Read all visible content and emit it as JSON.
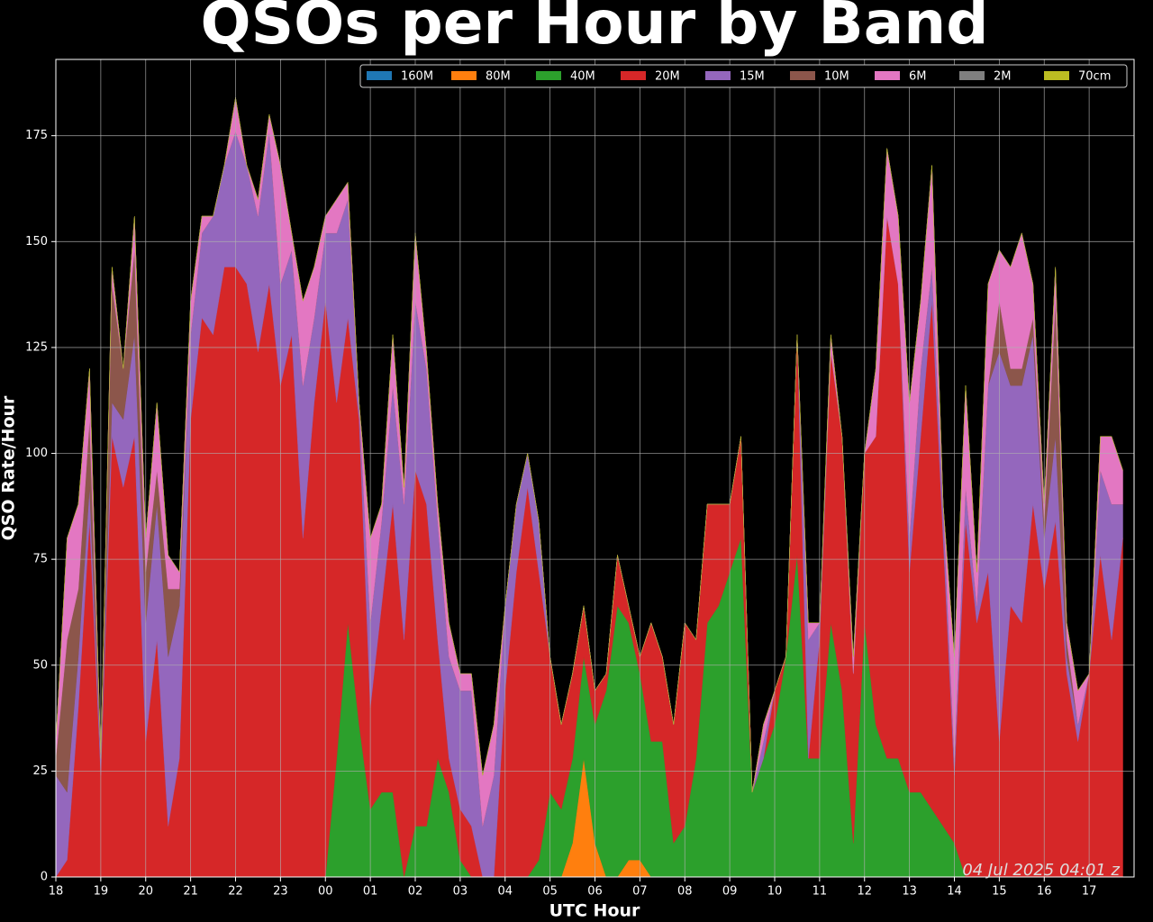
{
  "chart_data": {
    "type": "stackedarea",
    "title": "QSOs per Hour by Band",
    "x_label": "UTC Hour",
    "y_label": "QSO Rate/Hour",
    "annotation": "04 Jul 2025 04:01 z",
    "grid": true,
    "legend": "upper right",
    "xlim": [
      0,
      24
    ],
    "ylim": [
      0,
      193
    ],
    "xticks": [
      {
        "value": 0,
        "label": "18"
      },
      {
        "value": 1,
        "label": "19"
      },
      {
        "value": 2,
        "label": "20"
      },
      {
        "value": 3,
        "label": "21"
      },
      {
        "value": 4,
        "label": "22"
      },
      {
        "value": 5,
        "label": "23"
      },
      {
        "value": 6,
        "label": "00"
      },
      {
        "value": 7,
        "label": "01"
      },
      {
        "value": 8,
        "label": "02"
      },
      {
        "value": 9,
        "label": "03"
      },
      {
        "value": 10,
        "label": "04"
      },
      {
        "value": 11,
        "label": "05"
      },
      {
        "value": 12,
        "label": "06"
      },
      {
        "value": 13,
        "label": "07"
      },
      {
        "value": 14,
        "label": "08"
      },
      {
        "value": 15,
        "label": "09"
      },
      {
        "value": 16,
        "label": "10"
      },
      {
        "value": 17,
        "label": "11"
      },
      {
        "value": 18,
        "label": "12"
      },
      {
        "value": 19,
        "label": "13"
      },
      {
        "value": 20,
        "label": "14"
      },
      {
        "value": 21,
        "label": "15"
      },
      {
        "value": 22,
        "label": "16"
      },
      {
        "value": 23,
        "label": "17"
      }
    ],
    "yticks": [
      0,
      25,
      50,
      75,
      100,
      125,
      150,
      175
    ],
    "x": [
      0,
      0.25,
      0.5,
      0.75,
      1,
      1.25,
      1.5,
      1.75,
      2,
      2.25,
      2.5,
      2.75,
      3,
      3.25,
      3.5,
      3.75,
      4,
      4.25,
      4.5,
      4.75,
      5,
      5.25,
      5.5,
      5.75,
      6,
      6.25,
      6.5,
      6.75,
      7,
      7.25,
      7.5,
      7.75,
      8,
      8.25,
      8.5,
      8.75,
      9,
      9.25,
      9.5,
      9.75,
      10,
      10.25,
      10.5,
      10.75,
      11,
      11.25,
      11.5,
      11.75,
      12,
      12.25,
      12.5,
      12.75,
      13,
      13.25,
      13.5,
      13.75,
      14,
      14.25,
      14.5,
      14.75,
      15,
      15.25,
      15.5,
      15.75,
      16,
      16.25,
      16.5,
      16.75,
      17,
      17.25,
      17.5,
      17.75,
      18,
      18.25,
      18.5,
      18.75,
      19,
      19.25,
      19.5,
      19.75,
      20,
      20.25,
      20.5,
      20.75,
      21,
      21.25,
      21.5,
      21.75,
      22,
      22.25,
      22.5,
      22.75,
      23,
      23.25,
      23.5,
      23.75
    ],
    "series": [
      {
        "name": "160M",
        "color": "#1f77b4",
        "values": [
          0,
          0,
          0,
          0,
          0,
          0,
          0,
          0,
          0,
          0,
          0,
          0,
          0,
          0,
          0,
          0,
          0,
          0,
          0,
          0,
          0,
          0,
          0,
          0,
          0,
          0,
          0,
          0,
          0,
          0,
          0,
          0,
          0,
          0,
          0,
          0,
          0,
          0,
          0,
          0,
          0,
          0,
          0,
          0,
          0,
          0,
          0,
          0,
          0,
          0,
          0,
          0,
          0,
          0,
          0,
          0,
          0,
          0,
          0,
          0,
          0,
          0,
          0,
          0,
          0,
          0,
          0,
          0,
          0,
          0,
          0,
          0,
          0,
          0,
          0,
          0,
          0,
          0,
          0,
          0,
          0,
          0,
          0,
          0,
          0,
          0,
          0,
          0,
          0,
          0,
          0,
          0,
          0,
          0,
          0,
          0
        ]
      },
      {
        "name": "80M",
        "color": "#ff7f0e",
        "values": [
          0,
          0,
          0,
          0,
          0,
          0,
          0,
          0,
          0,
          0,
          0,
          0,
          0,
          0,
          0,
          0,
          0,
          0,
          0,
          0,
          0,
          0,
          0,
          0,
          0,
          0,
          0,
          0,
          0,
          0,
          0,
          0,
          0,
          0,
          0,
          0,
          0,
          0,
          0,
          0,
          0,
          0,
          0,
          0,
          0,
          0,
          8,
          28,
          8,
          0,
          0,
          4,
          4,
          0,
          0,
          0,
          0,
          0,
          0,
          0,
          0,
          0,
          0,
          0,
          0,
          0,
          0,
          0,
          0,
          0,
          0,
          0,
          0,
          0,
          0,
          0,
          0,
          0,
          0,
          0,
          0,
          0,
          0,
          0,
          0,
          0,
          0,
          0,
          0,
          0,
          0,
          0,
          0,
          0,
          0,
          0
        ]
      },
      {
        "name": "40M",
        "color": "#2ca02c",
        "values": [
          0,
          0,
          0,
          0,
          0,
          0,
          0,
          0,
          0,
          0,
          0,
          0,
          0,
          0,
          0,
          0,
          0,
          0,
          0,
          0,
          0,
          0,
          0,
          0,
          0,
          28,
          60,
          36,
          16,
          20,
          20,
          0,
          12,
          12,
          28,
          20,
          4,
          0,
          0,
          0,
          0,
          0,
          0,
          4,
          20,
          16,
          20,
          24,
          28,
          44,
          64,
          56,
          44,
          32,
          32,
          8,
          12,
          28,
          60,
          64,
          72,
          80,
          20,
          28,
          36,
          52,
          76,
          28,
          28,
          60,
          44,
          8,
          60,
          36,
          28,
          28,
          20,
          20,
          16,
          12,
          8,
          0,
          0,
          0,
          0,
          0,
          0,
          0,
          0,
          0,
          0,
          0,
          0,
          0,
          0,
          0
        ]
      },
      {
        "name": "20M",
        "color": "#d62728",
        "values": [
          0,
          4,
          40,
          84,
          24,
          104,
          92,
          104,
          32,
          56,
          12,
          28,
          108,
          132,
          128,
          144,
          144,
          140,
          124,
          140,
          116,
          128,
          80,
          112,
          136,
          84,
          72,
          72,
          24,
          44,
          68,
          56,
          84,
          76,
          28,
          8,
          12,
          12,
          0,
          0,
          44,
          72,
          92,
          68,
          32,
          20,
          20,
          12,
          8,
          4,
          12,
          4,
          4,
          28,
          20,
          28,
          48,
          28,
          28,
          24,
          16,
          24,
          0,
          0,
          8,
          0,
          52,
          0,
          28,
          64,
          60,
          40,
          40,
          68,
          128,
          112,
          52,
          84,
          120,
          68,
          16,
          84,
          60,
          72,
          32,
          64,
          60,
          88,
          68,
          84,
          48,
          32,
          48,
          76,
          56,
          80
        ]
      },
      {
        "name": "15M",
        "color": "#9467bd",
        "values": [
          24,
          16,
          12,
          8,
          4,
          8,
          16,
          24,
          28,
          32,
          40,
          36,
          20,
          20,
          28,
          24,
          32,
          28,
          32,
          36,
          24,
          20,
          36,
          20,
          16,
          40,
          28,
          4,
          20,
          20,
          28,
          32,
          40,
          32,
          28,
          24,
          28,
          32,
          12,
          24,
          20,
          16,
          8,
          12,
          0,
          0,
          0,
          0,
          0,
          0,
          0,
          0,
          0,
          0,
          0,
          0,
          0,
          0,
          0,
          0,
          0,
          0,
          0,
          4,
          0,
          0,
          0,
          28,
          4,
          0,
          0,
          0,
          0,
          0,
          0,
          0,
          8,
          16,
          8,
          8,
          4,
          8,
          4,
          44,
          92,
          52,
          56,
          40,
          12,
          20,
          4,
          4,
          0,
          20,
          32,
          8
        ]
      },
      {
        "name": "10M",
        "color": "#8c564b",
        "values": [
          4,
          36,
          16,
          16,
          0,
          28,
          12,
          20,
          12,
          8,
          16,
          4,
          0,
          0,
          0,
          0,
          0,
          0,
          0,
          0,
          0,
          0,
          0,
          0,
          0,
          0,
          0,
          0,
          0,
          0,
          0,
          0,
          0,
          0,
          0,
          0,
          0,
          0,
          0,
          0,
          0,
          0,
          0,
          0,
          0,
          0,
          0,
          0,
          0,
          0,
          0,
          0,
          0,
          0,
          0,
          0,
          0,
          0,
          0,
          0,
          0,
          0,
          0,
          0,
          0,
          0,
          0,
          0,
          0,
          0,
          0,
          0,
          0,
          0,
          0,
          0,
          0,
          0,
          0,
          0,
          0,
          0,
          0,
          0,
          12,
          4,
          4,
          4,
          4,
          32,
          4,
          0,
          0,
          0,
          0,
          0
        ]
      },
      {
        "name": "6M",
        "color": "#e377c2",
        "values": [
          4,
          24,
          20,
          12,
          0,
          4,
          0,
          8,
          8,
          16,
          8,
          4,
          8,
          4,
          0,
          0,
          8,
          0,
          4,
          4,
          28,
          4,
          20,
          12,
          4,
          8,
          4,
          0,
          20,
          4,
          12,
          4,
          16,
          4,
          4,
          8,
          4,
          4,
          12,
          12,
          0,
          0,
          0,
          0,
          0,
          0,
          0,
          0,
          0,
          0,
          0,
          0,
          0,
          0,
          0,
          0,
          0,
          0,
          0,
          0,
          0,
          0,
          0,
          4,
          0,
          0,
          0,
          4,
          0,
          4,
          0,
          4,
          0,
          16,
          16,
          16,
          32,
          16,
          24,
          0,
          24,
          24,
          8,
          24,
          12,
          24,
          32,
          8,
          4,
          8,
          4,
          8,
          0,
          8,
          16,
          8
        ]
      },
      {
        "name": "2M",
        "color": "#7f7f7f",
        "values": [
          0,
          0,
          0,
          0,
          0,
          0,
          0,
          0,
          0,
          0,
          0,
          0,
          0,
          0,
          0,
          0,
          0,
          0,
          0,
          0,
          0,
          0,
          0,
          0,
          0,
          0,
          0,
          0,
          0,
          0,
          0,
          0,
          0,
          0,
          0,
          0,
          0,
          0,
          0,
          0,
          0,
          0,
          0,
          0,
          0,
          0,
          0,
          0,
          0,
          0,
          0,
          0,
          0,
          0,
          0,
          0,
          0,
          0,
          0,
          0,
          0,
          0,
          0,
          0,
          0,
          0,
          0,
          0,
          0,
          0,
          0,
          0,
          0,
          0,
          0,
          0,
          0,
          0,
          0,
          0,
          0,
          0,
          0,
          0,
          0,
          0,
          0,
          0,
          0,
          0,
          0,
          0,
          0,
          0,
          0,
          0
        ]
      },
      {
        "name": "70cm",
        "color": "#bcbd22",
        "values": [
          0,
          0,
          0,
          0,
          0,
          0,
          0,
          0,
          0,
          0,
          0,
          0,
          0,
          0,
          0,
          0,
          0,
          0,
          0,
          0,
          0,
          0,
          0,
          0,
          0,
          0,
          0,
          0,
          0,
          0,
          0,
          0,
          0,
          0,
          0,
          0,
          0,
          0,
          0,
          0,
          0,
          0,
          0,
          0,
          0,
          0,
          0,
          0,
          0,
          0,
          0,
          0,
          0,
          0,
          0,
          0,
          0,
          0,
          0,
          0,
          0,
          0,
          0,
          0,
          0,
          0,
          0,
          0,
          0,
          0,
          0,
          0,
          0,
          0,
          0,
          0,
          0,
          0,
          0,
          0,
          0,
          0,
          0,
          0,
          0,
          0,
          0,
          0,
          0,
          0,
          0,
          0,
          0,
          0,
          0,
          0
        ]
      }
    ]
  }
}
